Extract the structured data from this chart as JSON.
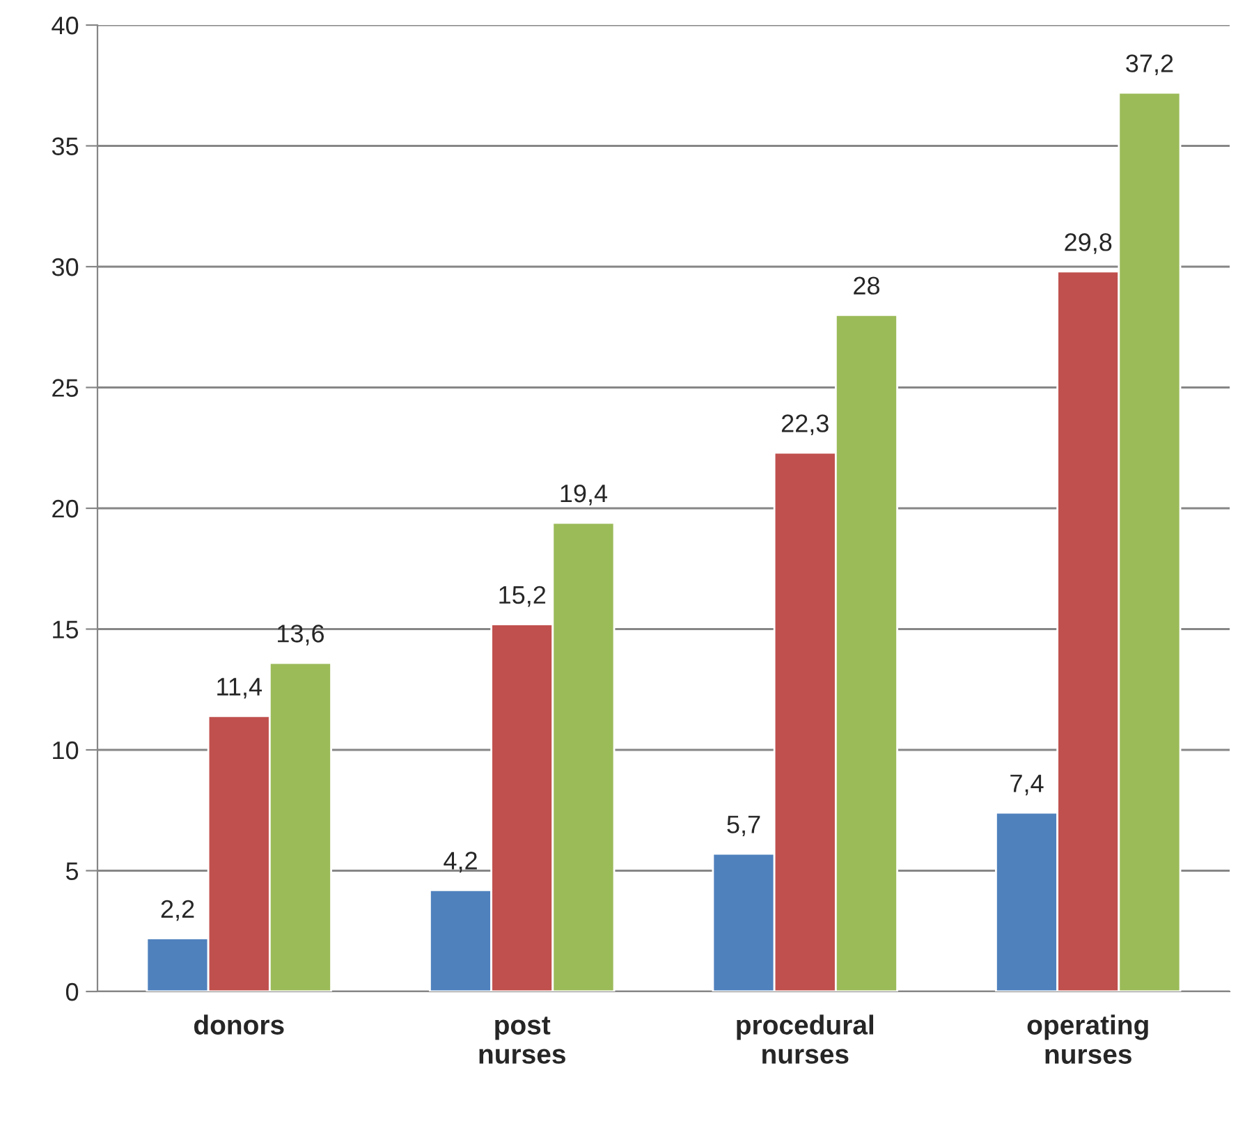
{
  "chart_data": {
    "type": "bar",
    "categories": [
      "donors",
      "post\nnurses",
      "procedural\nnurses",
      "operating\nnurses"
    ],
    "series": [
      {
        "color": "#4f81bd",
        "values": [
          2.2,
          4.2,
          5.7,
          7.4
        ],
        "value_labels": [
          "2,2",
          "4,2",
          "5,7",
          "7,4"
        ]
      },
      {
        "color": "#c0504d",
        "values": [
          11.4,
          15.2,
          22.3,
          29.8
        ],
        "value_labels": [
          "11,4",
          "15,2",
          "22,3",
          "29,8"
        ]
      },
      {
        "color": "#9bbb59",
        "values": [
          13.6,
          19.4,
          28,
          37.2
        ],
        "value_labels": [
          "13,6",
          "19,4",
          "28",
          "37,2"
        ]
      }
    ],
    "ylim": [
      0,
      40
    ],
    "yticks": [
      0,
      5,
      10,
      15,
      20,
      25,
      30,
      35,
      40
    ],
    "grid": "y",
    "legend": false
  }
}
